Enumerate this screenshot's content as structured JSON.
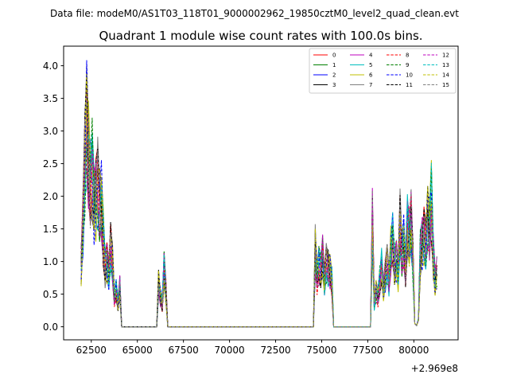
{
  "figure": {
    "suptitle": "Data file: modeM0/AS1T03_118T01_9000002962_19850cztM0_level2_quad_clean.evt"
  },
  "chart_data": {
    "type": "line",
    "title": "Quadrant 1 module wise count rates with 100.0s bins.",
    "xlabel": "",
    "ylabel": "",
    "x_offset_label": "+2.969e8",
    "xlim": [
      61000,
      82400
    ],
    "ylim": [
      -0.2,
      4.3
    ],
    "xticks": [
      62500,
      65000,
      67500,
      70000,
      72500,
      75000,
      77500,
      80000
    ],
    "xtick_labels": [
      "62500",
      "65000",
      "67500",
      "70000",
      "72500",
      "75000",
      "77500",
      "80000"
    ],
    "yticks": [
      0.0,
      0.5,
      1.0,
      1.5,
      2.0,
      2.5,
      3.0,
      3.5,
      4.0
    ],
    "ytick_labels": [
      "0.0",
      "0.5",
      "1.0",
      "1.5",
      "2.0",
      "2.5",
      "3.0",
      "3.5",
      "4.0"
    ],
    "grid": false,
    "legend_placement": "top-right",
    "legend_columns": 4,
    "series": [
      {
        "name": "0",
        "color": "#ff0000",
        "style": "solid"
      },
      {
        "name": "1",
        "color": "#008000",
        "style": "solid"
      },
      {
        "name": "2",
        "color": "#0000ff",
        "style": "solid"
      },
      {
        "name": "3",
        "color": "#000000",
        "style": "solid"
      },
      {
        "name": "4",
        "color": "#bf00bf",
        "style": "solid"
      },
      {
        "name": "5",
        "color": "#00bfbf",
        "style": "solid"
      },
      {
        "name": "6",
        "color": "#bfbf00",
        "style": "solid"
      },
      {
        "name": "7",
        "color": "#808080",
        "style": "solid"
      },
      {
        "name": "8",
        "color": "#ff0000",
        "style": "dashed"
      },
      {
        "name": "9",
        "color": "#008000",
        "style": "dashed"
      },
      {
        "name": "10",
        "color": "#0000ff",
        "style": "dashed"
      },
      {
        "name": "11",
        "color": "#000000",
        "style": "dashed"
      },
      {
        "name": "12",
        "color": "#bf00bf",
        "style": "dashed"
      },
      {
        "name": "13",
        "color": "#00bfbf",
        "style": "dashed"
      },
      {
        "name": "14",
        "color": "#bfbf00",
        "style": "dashed"
      },
      {
        "name": "15",
        "color": "#808080",
        "style": "dashed"
      }
    ],
    "profile": {
      "x": [
        61950,
        62050,
        62150,
        62250,
        62350,
        62450,
        62550,
        62650,
        62750,
        62850,
        62950,
        63050,
        63150,
        63250,
        63350,
        63450,
        63550,
        63650,
        63750,
        63850,
        63950,
        64050,
        64150,
        66050,
        66150,
        66250,
        66350,
        66450,
        66550,
        66650,
        74550,
        74650,
        74750,
        74850,
        74950,
        75050,
        75150,
        75250,
        75350,
        75450,
        75550,
        75650,
        77650,
        77750,
        77850,
        77950,
        78050,
        78150,
        78250,
        78350,
        78450,
        78550,
        78650,
        78750,
        78850,
        78950,
        79050,
        79150,
        79250,
        79350,
        79450,
        79550,
        79650,
        79750,
        79850,
        79950,
        80050,
        80150,
        80250,
        80350,
        80450,
        80550,
        80650,
        80750,
        80850,
        80950,
        81050,
        81150,
        81250
      ],
      "y": [
        0.9,
        1.6,
        2.5,
        3.2,
        2.6,
        2.1,
        2.4,
        1.9,
        2.0,
        2.2,
        1.8,
        1.9,
        1.4,
        0.9,
        1.0,
        0.8,
        1.2,
        1.0,
        0.45,
        0.55,
        0.35,
        0.6,
        0.0,
        0.0,
        0.65,
        0.45,
        0.35,
        0.9,
        0.55,
        0.0,
        0.0,
        1.2,
        0.75,
        0.95,
        0.85,
        1.05,
        0.7,
        1.0,
        0.9,
        0.85,
        0.7,
        0.0,
        0.0,
        1.6,
        0.35,
        0.55,
        0.45,
        0.7,
        0.9,
        0.55,
        0.8,
        1.0,
        0.7,
        1.15,
        1.3,
        0.95,
        1.05,
        0.8,
        1.6,
        1.1,
        1.3,
        0.9,
        1.55,
        1.35,
        1.6,
        1.0,
        0.05,
        0.02,
        0.1,
        1.15,
        1.3,
        1.4,
        1.25,
        1.6,
        1.5,
        2.0,
        1.1,
        0.7,
        0.8
      ],
      "gaps_after_index": [
        22,
        29,
        41
      ]
    }
  }
}
